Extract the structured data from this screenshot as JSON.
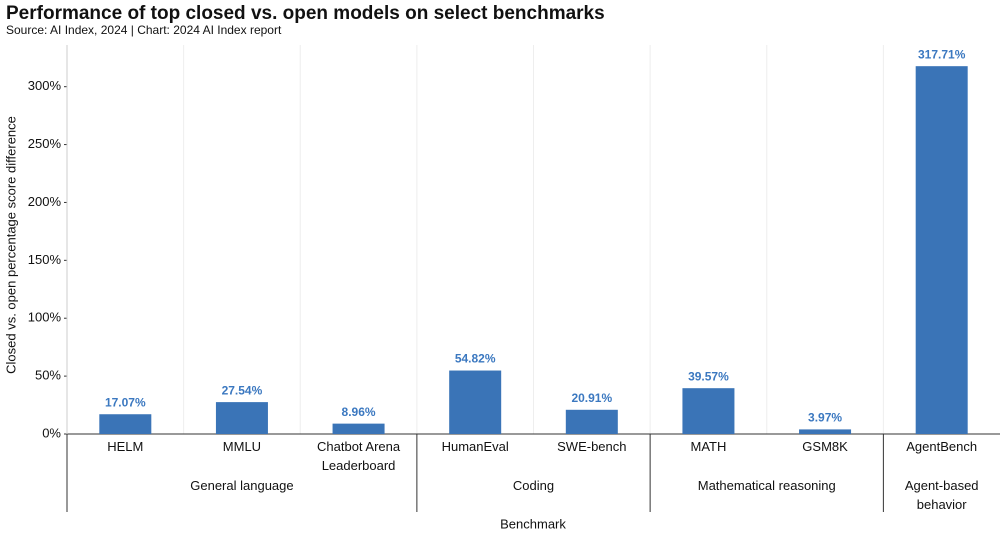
{
  "chart_data": {
    "type": "bar",
    "title": "Performance of top closed vs. open models on select benchmarks",
    "subtitle": "Source: AI Index, 2024 | Chart: 2024 AI Index report",
    "y_label": "Closed vs. open percentage score difference",
    "x_label": "Benchmark",
    "color": "#3a74b7",
    "value_label_color": "#3b78c0",
    "ylim": [
      0,
      336
    ],
    "yticks": [
      {
        "value": 0,
        "label": "0%"
      },
      {
        "value": 50,
        "label": "50%"
      },
      {
        "value": 100,
        "label": "100%"
      },
      {
        "value": 150,
        "label": "150%"
      },
      {
        "value": 200,
        "label": "200%"
      },
      {
        "value": 250,
        "label": "250%"
      },
      {
        "value": 300,
        "label": "300%"
      }
    ],
    "groups": [
      {
        "name": "General language",
        "categories": [
          "HELM",
          "MMLU",
          "Chatbot Arena Leaderboard"
        ],
        "values": [
          17.07,
          27.54,
          8.96
        ],
        "value_labels": [
          "17.07%",
          "27.54%",
          "8.96%"
        ]
      },
      {
        "name": "Coding",
        "categories": [
          "HumanEval",
          "SWE-bench"
        ],
        "values": [
          54.82,
          20.91
        ],
        "value_labels": [
          "54.82%",
          "20.91%"
        ]
      },
      {
        "name": "Mathematical reasoning",
        "categories": [
          "MATH",
          "GSM8K"
        ],
        "values": [
          39.57,
          3.97
        ],
        "value_labels": [
          "39.57%",
          "3.97%"
        ]
      },
      {
        "name": "Agent-based behavior",
        "categories": [
          "AgentBench"
        ],
        "values": [
          317.71
        ],
        "value_labels": [
          "317.71%"
        ]
      }
    ]
  }
}
